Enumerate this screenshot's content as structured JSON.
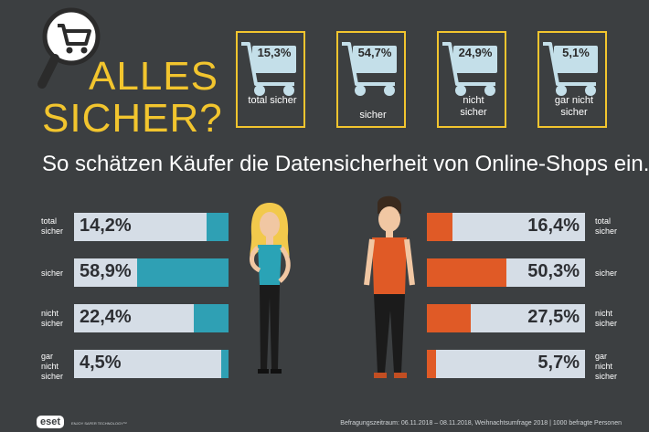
{
  "header": {
    "title_line1": "ALLES",
    "title_line2": "SICHER?"
  },
  "subtitle": "So schätzen Käufer die Datensicherheit von Online-Shops ein.",
  "carts": [
    {
      "value": "15,3%",
      "label": "total sicher"
    },
    {
      "value": "54,7%",
      "label": "sicher"
    },
    {
      "value": "24,9%",
      "label": "nicht sicher"
    },
    {
      "value": "5,1%",
      "label": "gar nicht sicher"
    }
  ],
  "chart_data": {
    "type": "bar",
    "title": "So schätzen Käufer die Datensicherheit von Online-Shops ein.",
    "categories": [
      "total sicher",
      "sicher",
      "nicht sicher",
      "gar nicht sicher"
    ],
    "series": [
      {
        "name": "Frauen",
        "values": [
          14.2,
          58.9,
          22.4,
          4.5
        ],
        "labels": [
          "14,2%",
          "58,9%",
          "22,4%",
          "4,5%"
        ],
        "color": "#2fa0b4"
      },
      {
        "name": "Männer",
        "values": [
          16.4,
          50.3,
          27.5,
          5.7
        ],
        "labels": [
          "16,4%",
          "50,3%",
          "27,5%",
          "5,7%"
        ],
        "color": "#e05a26"
      }
    ],
    "overall": {
      "values": [
        15.3,
        54.7,
        24.9,
        5.1
      ],
      "labels": [
        "15,3%",
        "54,7%",
        "24,9%",
        "5,1%"
      ]
    },
    "ylim": [
      0,
      100
    ]
  },
  "footer": {
    "logo": "eset",
    "tagline": "ENJOY SAFER TECHNOLOGY™",
    "note": "Befragungszeitraum: 06.11.2018 – 08.11.2018, Weihnachtsumfrage 2018 | 1000 befragte Personen"
  },
  "colors": {
    "accent": "#f2c52e",
    "teal": "#2fa0b4",
    "orange": "#e05a26",
    "track": "#d5dde6",
    "background": "#3c3f41"
  }
}
